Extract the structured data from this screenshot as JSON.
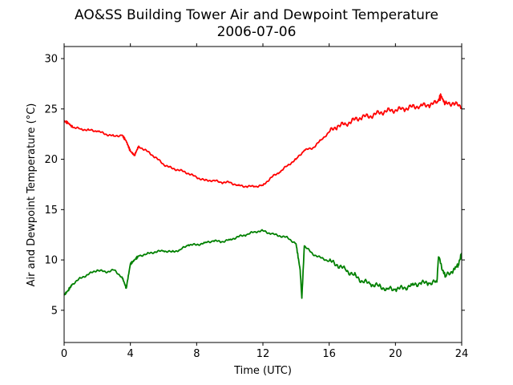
{
  "chart_data": {
    "type": "line",
    "title": "AO&SS Building Tower Air and Dewpoint Temperature",
    "subtitle": "2006-07-06",
    "xlabel": "Time (UTC)",
    "ylabel": "Air and Dewpoint Temperature (°C)",
    "xlim": [
      0,
      24
    ],
    "ylim": [
      1.8,
      31.2
    ],
    "xticks": [
      0,
      4,
      8,
      12,
      16,
      20,
      24
    ],
    "yticks": [
      5,
      10,
      15,
      20,
      25,
      30
    ],
    "grid": false,
    "colors": {
      "air": "#ff0000",
      "dewpoint": "#008000"
    },
    "series": [
      {
        "key": "air",
        "x": [
          0,
          0.25,
          0.5,
          1,
          1.5,
          2,
          2.5,
          3,
          3.5,
          3.75,
          4,
          4.25,
          4.5,
          5,
          5.5,
          6,
          6.5,
          7,
          7.5,
          8,
          8.5,
          9,
          9.5,
          10,
          10.5,
          11,
          11.5,
          12,
          12.5,
          13,
          13.5,
          14,
          14.5,
          15,
          15.5,
          16,
          16.5,
          17,
          17.5,
          18,
          18.5,
          19,
          19.5,
          20,
          20.5,
          21,
          21.5,
          22,
          22.5,
          22.75,
          23,
          23.5,
          24
        ],
        "y": [
          23.8,
          23.6,
          23.2,
          23.0,
          22.9,
          22.8,
          22.5,
          22.3,
          22.4,
          21.8,
          20.8,
          20.4,
          21.3,
          20.8,
          20.2,
          19.5,
          19.1,
          18.9,
          18.6,
          18.2,
          17.9,
          17.9,
          17.7,
          17.7,
          17.4,
          17.3,
          17.3,
          17.4,
          18.2,
          18.7,
          19.4,
          20.0,
          20.9,
          21.1,
          21.9,
          22.7,
          23.3,
          23.5,
          23.9,
          24.2,
          24.3,
          24.6,
          24.8,
          24.9,
          25.0,
          25.2,
          25.3,
          25.4,
          25.6,
          26.3,
          25.5,
          25.6,
          25.1
        ]
      },
      {
        "key": "dewpoint",
        "x": [
          0,
          0.25,
          0.5,
          1,
          1.5,
          2,
          2.5,
          3,
          3.5,
          3.75,
          4,
          4.25,
          4.5,
          5,
          5.5,
          6,
          6.5,
          7,
          7.5,
          8,
          8.5,
          9,
          9.5,
          10,
          10.5,
          11,
          11.5,
          12,
          12.5,
          13,
          13.5,
          14,
          14.25,
          14.35,
          14.5,
          15,
          15.5,
          16,
          16.5,
          17,
          17.5,
          18,
          18.5,
          19,
          19.5,
          20,
          20.5,
          21,
          21.5,
          22,
          22.5,
          22.6,
          23,
          23.5,
          23.8,
          24
        ],
        "y": [
          6.5,
          7.0,
          7.6,
          8.2,
          8.6,
          9.0,
          8.8,
          9.0,
          8.3,
          7.2,
          9.6,
          10.0,
          10.4,
          10.6,
          10.8,
          10.9,
          10.8,
          11.0,
          11.5,
          11.5,
          11.7,
          11.9,
          11.8,
          12.0,
          12.3,
          12.5,
          12.8,
          12.9,
          12.6,
          12.4,
          12.2,
          11.6,
          9.0,
          6.2,
          11.4,
          10.6,
          10.2,
          9.9,
          9.5,
          9.0,
          8.5,
          7.9,
          7.6,
          7.4,
          7.1,
          7.1,
          7.2,
          7.5,
          7.7,
          7.7,
          7.8,
          10.3,
          8.3,
          9.0,
          9.6,
          10.6
        ]
      }
    ]
  }
}
